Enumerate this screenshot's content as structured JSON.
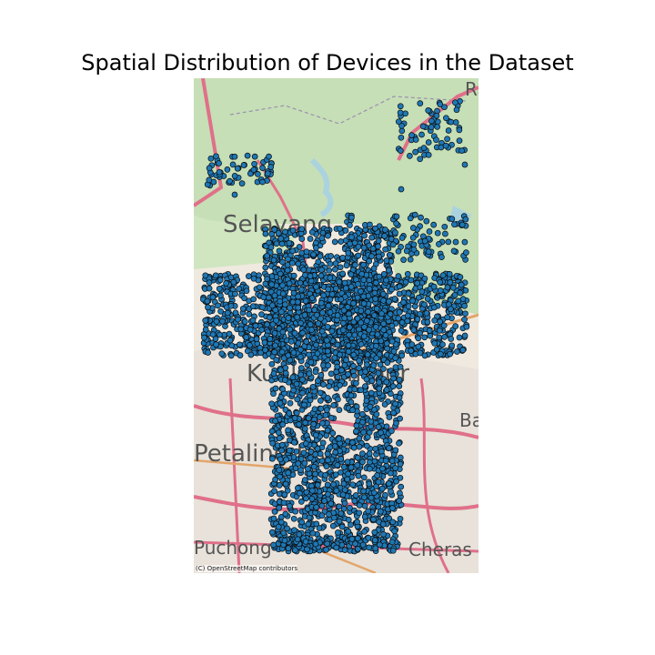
{
  "title": "Spatial Distribution of Devices in the Dataset",
  "attribution": "(C) OpenStreetMap contributors",
  "basemap": {
    "place_labels": [
      {
        "text": "Selayang",
        "size": 26
      },
      {
        "text": "Kuala Lumpur",
        "size": 26
      },
      {
        "text": "Petaling Jaya",
        "size": 26
      },
      {
        "text": "Bandar Baru Ampang",
        "size": 20
      },
      {
        "text": "Puchong",
        "size": 20
      },
      {
        "text": "Cheras Batu Sembilan / Kajang",
        "size": 20
      },
      {
        "text": "Rawang",
        "size": 20
      }
    ]
  },
  "colors": {
    "points": "#1f77b4",
    "point_edge": "#0b0b0b",
    "forest": "#c6dfb6",
    "urban": "#e9e4dc",
    "major_road": "#e0708a",
    "water": "#aad3df"
  },
  "chart_data": {
    "type": "scatter",
    "title": "Spatial Distribution of Devices in the Dataset",
    "series": [
      {
        "values": "dense clusters of device locations covering a T-shaped region over the Klang Valley"
      }
    ]
  }
}
